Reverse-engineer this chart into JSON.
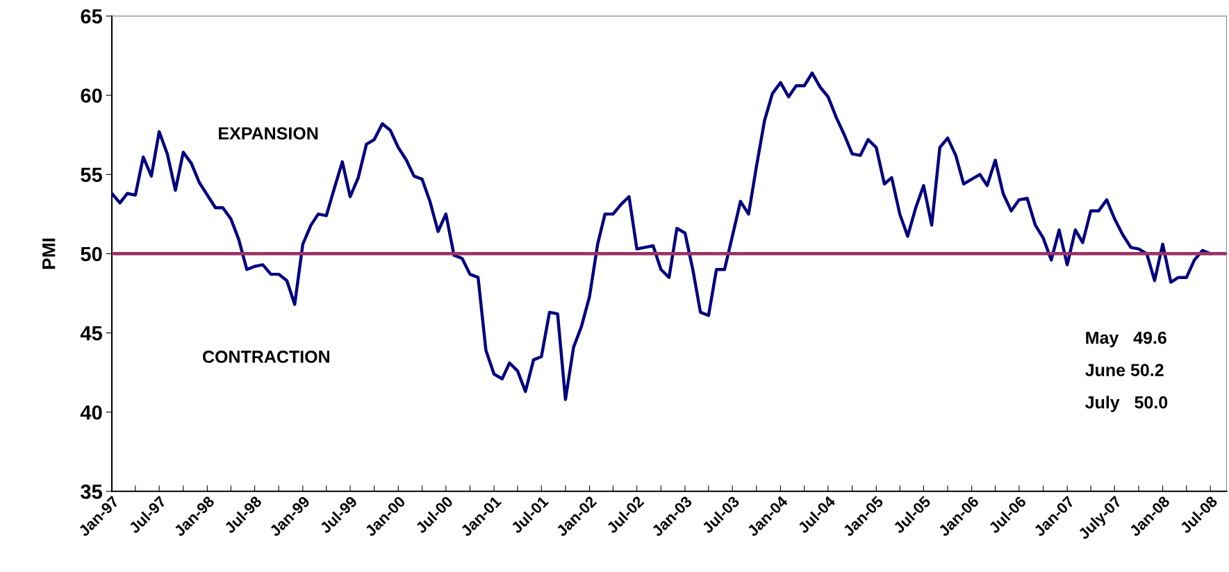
{
  "chart_data": {
    "type": "line",
    "ylabel": "PMI",
    "x": [
      "1997-01",
      "1997-02",
      "1997-03",
      "1997-04",
      "1997-05",
      "1997-06",
      "1997-07",
      "1997-08",
      "1997-09",
      "1997-10",
      "1997-11",
      "1997-12",
      "1998-01",
      "1998-02",
      "1998-03",
      "1998-04",
      "1998-05",
      "1998-06",
      "1998-07",
      "1998-08",
      "1998-09",
      "1998-10",
      "1998-11",
      "1998-12",
      "1999-01",
      "1999-02",
      "1999-03",
      "1999-04",
      "1999-05",
      "1999-06",
      "1999-07",
      "1999-08",
      "1999-09",
      "1999-10",
      "1999-11",
      "1999-12",
      "2000-01",
      "2000-02",
      "2000-03",
      "2000-04",
      "2000-05",
      "2000-06",
      "2000-07",
      "2000-08",
      "2000-09",
      "2000-10",
      "2000-11",
      "2000-12",
      "2001-01",
      "2001-02",
      "2001-03",
      "2001-04",
      "2001-05",
      "2001-06",
      "2001-07",
      "2001-08",
      "2001-09",
      "2001-10",
      "2001-11",
      "2001-12",
      "2002-01",
      "2002-02",
      "2002-03",
      "2002-04",
      "2002-05",
      "2002-06",
      "2002-07",
      "2002-08",
      "2002-09",
      "2002-10",
      "2002-11",
      "2002-12",
      "2003-01",
      "2003-02",
      "2003-03",
      "2003-04",
      "2003-05",
      "2003-06",
      "2003-07",
      "2003-08",
      "2003-09",
      "2003-10",
      "2003-11",
      "2003-12",
      "2004-01",
      "2004-02",
      "2004-03",
      "2004-04",
      "2004-05",
      "2004-06",
      "2004-07",
      "2004-08",
      "2004-09",
      "2004-10",
      "2004-11",
      "2004-12",
      "2005-01",
      "2005-02",
      "2005-03",
      "2005-04",
      "2005-05",
      "2005-06",
      "2005-07",
      "2005-08",
      "2005-09",
      "2005-10",
      "2005-11",
      "2005-12",
      "2006-01",
      "2006-02",
      "2006-03",
      "2006-04",
      "2006-05",
      "2006-06",
      "2006-07",
      "2006-08",
      "2006-09",
      "2006-10",
      "2006-11",
      "2006-12",
      "2007-01",
      "2007-02",
      "2007-03",
      "2007-04",
      "2007-05",
      "2007-06",
      "2007-07",
      "2007-08",
      "2007-09",
      "2007-10",
      "2007-11",
      "2007-12",
      "2008-01",
      "2008-02",
      "2008-03",
      "2008-04",
      "2008-05",
      "2008-06",
      "2008-07"
    ],
    "series": [
      {
        "color": "#000080",
        "values": [
          53.8,
          53.2,
          53.8,
          53.7,
          56.1,
          54.9,
          57.7,
          56.3,
          54.0,
          56.4,
          55.7,
          54.5,
          53.7,
          52.9,
          52.9,
          52.2,
          50.9,
          49.0,
          49.2,
          49.3,
          48.7,
          48.7,
          48.3,
          46.8,
          50.6,
          51.8,
          52.5,
          52.4,
          54.1,
          55.8,
          53.6,
          54.8,
          56.9,
          57.2,
          58.2,
          57.8,
          56.7,
          55.9,
          54.9,
          54.7,
          53.3,
          51.4,
          52.5,
          49.9,
          49.7,
          48.7,
          48.5,
          43.9,
          42.4,
          42.1,
          43.1,
          42.6,
          41.3,
          43.3,
          43.5,
          46.3,
          46.2,
          40.8,
          44.1,
          45.4,
          47.3,
          50.6,
          52.5,
          52.5,
          53.1,
          53.6,
          50.3,
          50.4,
          50.5,
          49.0,
          48.5,
          51.6,
          51.3,
          48.9,
          46.3,
          46.1,
          49.0,
          49.0,
          51.1,
          53.3,
          52.5,
          55.5,
          58.4,
          60.1,
          60.8,
          59.9,
          60.6,
          60.6,
          61.4,
          60.5,
          59.9,
          58.6,
          57.5,
          56.3,
          56.2,
          57.2,
          56.7,
          54.4,
          54.8,
          52.5,
          51.1,
          52.9,
          54.3,
          51.8,
          56.7,
          57.3,
          56.2,
          54.4,
          54.7,
          55.0,
          54.3,
          55.9,
          53.8,
          52.7,
          53.4,
          53.5,
          51.8,
          51.0,
          49.6,
          51.5,
          49.3,
          51.5,
          50.7,
          52.7,
          52.7,
          53.4,
          52.2,
          51.2,
          50.4,
          50.3,
          50.0,
          48.3,
          50.6,
          48.2,
          48.5,
          48.5,
          49.6,
          50.2,
          50.0
        ]
      }
    ],
    "xlim": [
      "1997-01",
      "2008-09"
    ],
    "xticks": [
      {
        "value": "1997-01",
        "label": "Jan-97"
      },
      {
        "value": "1997-04",
        "label": null
      },
      {
        "value": "1997-07",
        "label": "Jul-97"
      },
      {
        "value": "1997-10",
        "label": null
      },
      {
        "value": "1998-01",
        "label": "Jan-98"
      },
      {
        "value": "1998-04",
        "label": null
      },
      {
        "value": "1998-07",
        "label": "Jul-98"
      },
      {
        "value": "1998-10",
        "label": null
      },
      {
        "value": "1999-01",
        "label": "Jan-99"
      },
      {
        "value": "1999-04",
        "label": null
      },
      {
        "value": "1999-07",
        "label": "Jul-99"
      },
      {
        "value": "1999-10",
        "label": null
      },
      {
        "value": "2000-01",
        "label": "Jan-00"
      },
      {
        "value": "2000-04",
        "label": null
      },
      {
        "value": "2000-07",
        "label": "Jul-00"
      },
      {
        "value": "2000-10",
        "label": null
      },
      {
        "value": "2001-01",
        "label": "Jan-01"
      },
      {
        "value": "2001-04",
        "label": null
      },
      {
        "value": "2001-07",
        "label": "Jul-01"
      },
      {
        "value": "2001-10",
        "label": null
      },
      {
        "value": "2002-01",
        "label": "Jan-02"
      },
      {
        "value": "2002-04",
        "label": null
      },
      {
        "value": "2002-07",
        "label": "Jul-02"
      },
      {
        "value": "2002-10",
        "label": null
      },
      {
        "value": "2003-01",
        "label": "Jan-03"
      },
      {
        "value": "2003-04",
        "label": null
      },
      {
        "value": "2003-07",
        "label": "Jul-03"
      },
      {
        "value": "2003-10",
        "label": null
      },
      {
        "value": "2004-01",
        "label": "Jan-04"
      },
      {
        "value": "2004-04",
        "label": null
      },
      {
        "value": "2004-07",
        "label": "Jul-04"
      },
      {
        "value": "2004-10",
        "label": null
      },
      {
        "value": "2005-01",
        "label": "Jan-05"
      },
      {
        "value": "2005-04",
        "label": null
      },
      {
        "value": "2005-07",
        "label": "Jul-05"
      },
      {
        "value": "2005-10",
        "label": null
      },
      {
        "value": "2006-01",
        "label": "Jan-06"
      },
      {
        "value": "2006-04",
        "label": null
      },
      {
        "value": "2006-07",
        "label": "Jul-06"
      },
      {
        "value": "2006-10",
        "label": null
      },
      {
        "value": "2007-01",
        "label": "Jan-07"
      },
      {
        "value": "2007-04",
        "label": null
      },
      {
        "value": "2007-07",
        "label": "July-07"
      },
      {
        "value": "2007-10",
        "label": null
      },
      {
        "value": "2008-01",
        "label": "Jan-08"
      },
      {
        "value": "2008-04",
        "label": null
      },
      {
        "value": "2008-07",
        "label": "Jul-08"
      }
    ],
    "ylim": [
      35,
      65
    ],
    "yticks": [
      35,
      40,
      45,
      50,
      55,
      60,
      65
    ],
    "ref_lines": [
      {
        "axis": "y",
        "value": 50,
        "color": "#993366"
      }
    ],
    "annotations": [
      "EXPANSION",
      "CONTRACTION",
      "May   49.6",
      "June 50.2",
      "July   50.0"
    ],
    "marker": "none",
    "line_style": "solid"
  }
}
